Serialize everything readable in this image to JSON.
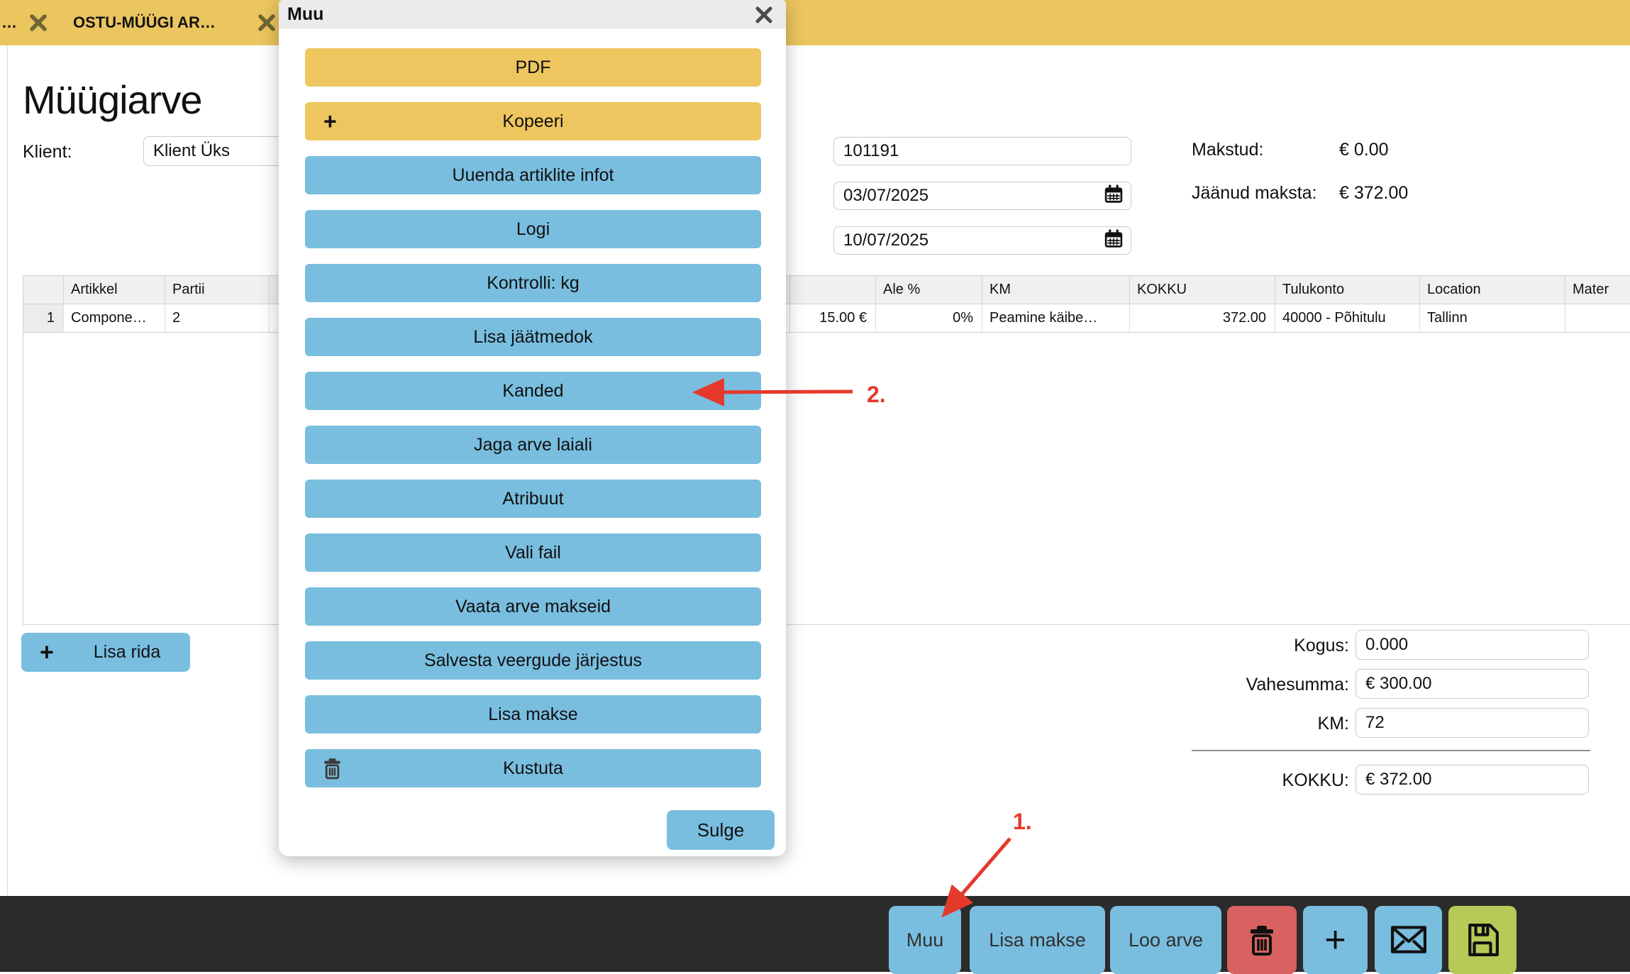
{
  "tab_bar": {
    "tabs": [
      {
        "label": "…"
      },
      {
        "label": "OSTU-MÜÜGI AR…"
      }
    ]
  },
  "page": {
    "title": "Müügiarve",
    "client": {
      "label": "Klient:",
      "value": "Klient Üks"
    },
    "invoice_number": "101191",
    "date_start": "03/07/2025",
    "date_due": "10/07/2025",
    "paid": {
      "label": "Makstud:",
      "value": "€ 0.00"
    },
    "remaining": {
      "label": "Jäänud maksta:",
      "value": "€ 372.00"
    },
    "add_row_label": "Lisa rida",
    "totals": {
      "kogus": {
        "label": "Kogus:",
        "value": "0.000"
      },
      "vahesumma": {
        "label": "Vahesumma:",
        "value": "€ 300.00"
      },
      "km": {
        "label": "KM:",
        "value": "72"
      },
      "kokku": {
        "label": "KOKKU:",
        "value": "€ 372.00"
      }
    }
  },
  "table": {
    "columns": [
      {
        "key": "num",
        "header": "",
        "value": "1"
      },
      {
        "key": "artikkel",
        "header": "Artikkel",
        "value": "Compone…"
      },
      {
        "key": "partii",
        "header": "Partii",
        "value": "2"
      },
      {
        "key": "hidden",
        "header": "",
        "value": ""
      },
      {
        "key": "hind",
        "header": "",
        "value": "15.00 €"
      },
      {
        "key": "ale",
        "header": "Ale %",
        "value": "0%"
      },
      {
        "key": "km",
        "header": "KM",
        "value": "Peamine käibe…"
      },
      {
        "key": "kokku",
        "header": "KOKKU",
        "value": "372.00"
      },
      {
        "key": "tulukonto",
        "header": "Tulukonto",
        "value": "40000 - Põhitulu"
      },
      {
        "key": "location",
        "header": "Location",
        "value": "Tallinn"
      },
      {
        "key": "material",
        "header": "Mater",
        "value": ""
      }
    ]
  },
  "modal": {
    "title": "Muu",
    "buttons": [
      {
        "label": "PDF",
        "style": "yellow"
      },
      {
        "label": "Kopeeri",
        "style": "yellow",
        "icon": "plus"
      },
      {
        "label": "Uuenda artiklite infot",
        "style": "blue"
      },
      {
        "label": "Logi",
        "style": "blue"
      },
      {
        "label": "Kontrolli: kg",
        "style": "blue"
      },
      {
        "label": "Lisa jäätmedok",
        "style": "blue"
      },
      {
        "label": "Kanded",
        "style": "blue"
      },
      {
        "label": "Jaga arve laiali",
        "style": "blue"
      },
      {
        "label": "Atribuut",
        "style": "blue"
      },
      {
        "label": "Vali fail",
        "style": "blue"
      },
      {
        "label": "Vaata arve makseid",
        "style": "blue"
      },
      {
        "label": "Salvesta veergude järjestus",
        "style": "blue"
      },
      {
        "label": "Lisa makse",
        "style": "blue"
      },
      {
        "label": "Kustuta",
        "style": "blue",
        "icon": "trash"
      }
    ],
    "close_button_label": "Sulge"
  },
  "toolbar": {
    "buttons": [
      {
        "label": "Muu",
        "style": "blue"
      },
      {
        "label": "Lisa makse",
        "style": "blue"
      },
      {
        "label": "Loo arve",
        "style": "blue"
      },
      {
        "icon": "trash",
        "style": "red"
      },
      {
        "icon": "plus",
        "style": "blue"
      },
      {
        "icon": "envelope",
        "style": "blue"
      },
      {
        "icon": "floppy",
        "style": "green"
      }
    ]
  },
  "annotations": {
    "step1": "1.",
    "step2": "2."
  },
  "colors": {
    "tab_yellow": "#ebc55e",
    "button_yellow": "#edc65f",
    "button_blue": "#79bedf",
    "button_red": "#d7625f",
    "button_green": "#b7ca58",
    "toolbar_bg": "#2b2b2b",
    "modal_header": "#ebebed",
    "annotation_red": "#e5392c"
  }
}
